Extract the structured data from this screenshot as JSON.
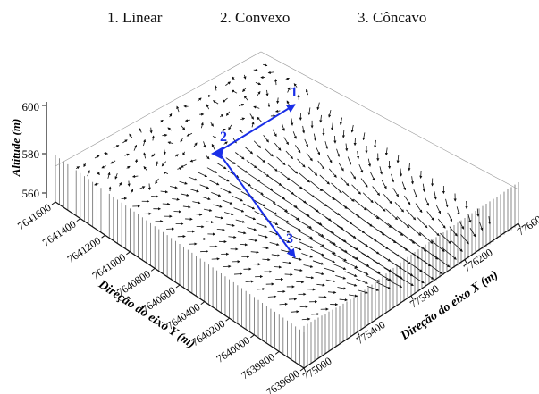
{
  "legend": {
    "item1": "1. Linear",
    "item2": "2. Convexo",
    "item3": "3. Côncavo"
  },
  "axes": {
    "z_label": "Altitude (m)",
    "y_label": "Direção do eixo Y (m)",
    "x_label": "Direção do eixo X (m)",
    "z_ticks": [
      "600",
      "580",
      "560"
    ],
    "y_ticks": [
      "7641600",
      "7641400",
      "7641200",
      "7641000",
      "7640800",
      "7640600",
      "7640400",
      "7640200",
      "7640000",
      "7639800",
      "7639600"
    ],
    "x_ticks": [
      "775000",
      "775400",
      "775800",
      "776200",
      "776600"
    ]
  },
  "profile": {
    "color": "#1a2fe8",
    "markers": [
      "1",
      "2",
      "3"
    ]
  },
  "colors": {
    "vector": "#111111",
    "wall": "#444444"
  }
}
